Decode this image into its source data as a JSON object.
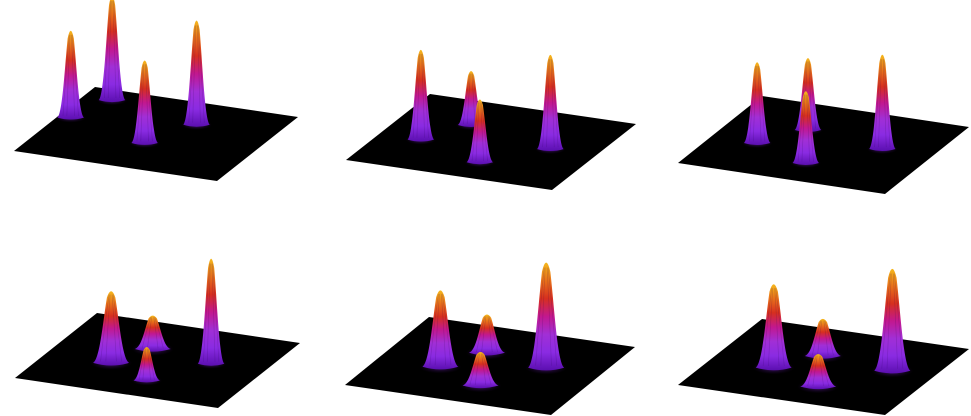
{
  "figure": {
    "layout": {
      "rows": 2,
      "cols": 3
    },
    "colormap": [
      "#5b0fb0",
      "#8a2be2",
      "#a12fd6",
      "#c2188f",
      "#d62f1f",
      "#e8701a",
      "#f5b81c"
    ],
    "plane_color": "#000000",
    "background": "#ffffff",
    "panels": [
      {
        "name": "panel-1",
        "peaks": [
          {
            "u": 0.06,
            "v": 0.55,
            "height": 1.0,
            "width": "narrow"
          },
          {
            "u": 0.14,
            "v": 0.86,
            "height": 1.2,
            "width": "narrow"
          },
          {
            "u": 0.5,
            "v": 0.36,
            "height": 0.95,
            "width": "narrow"
          },
          {
            "u": 0.62,
            "v": 0.7,
            "height": 1.2,
            "width": "narrow"
          }
        ]
      },
      {
        "name": "panel-2",
        "peaks": [
          {
            "u": 0.2,
            "v": 0.4,
            "height": 1.0,
            "width": "narrow"
          },
          {
            "u": 0.33,
            "v": 0.68,
            "height": 0.6,
            "width": "narrow"
          },
          {
            "u": 0.56,
            "v": 0.22,
            "height": 0.7,
            "width": "narrow"
          },
          {
            "u": 0.78,
            "v": 0.52,
            "height": 1.05,
            "width": "narrow"
          }
        ]
      },
      {
        "name": "panel-3",
        "peaks": [
          {
            "u": 0.22,
            "v": 0.4,
            "height": 0.9,
            "width": "narrow"
          },
          {
            "u": 0.36,
            "v": 0.66,
            "height": 0.8,
            "width": "narrow"
          },
          {
            "u": 0.52,
            "v": 0.24,
            "height": 0.8,
            "width": "narrow"
          },
          {
            "u": 0.76,
            "v": 0.56,
            "height": 1.05,
            "width": "narrow"
          }
        ]
      },
      {
        "name": "panel-4",
        "peaks": [
          {
            "u": 0.32,
            "v": 0.38,
            "height": 0.75,
            "width": "medium"
          },
          {
            "u": 0.42,
            "v": 0.64,
            "height": 0.35,
            "width": "medium"
          },
          {
            "u": 0.56,
            "v": 0.22,
            "height": 0.35,
            "width": "narrow"
          },
          {
            "u": 0.74,
            "v": 0.56,
            "height": 1.1,
            "width": "narrow"
          }
        ]
      },
      {
        "name": "panel-5",
        "peaks": [
          {
            "u": 0.3,
            "v": 0.4,
            "height": 0.8,
            "width": "medium"
          },
          {
            "u": 0.42,
            "v": 0.66,
            "height": 0.4,
            "width": "medium"
          },
          {
            "u": 0.56,
            "v": 0.24,
            "height": 0.35,
            "width": "medium"
          },
          {
            "u": 0.74,
            "v": 0.58,
            "height": 1.1,
            "width": "medium"
          }
        ]
      },
      {
        "name": "panel-6",
        "peaks": [
          {
            "u": 0.3,
            "v": 0.4,
            "height": 0.9,
            "width": "medium"
          },
          {
            "u": 0.44,
            "v": 0.64,
            "height": 0.4,
            "width": "medium"
          },
          {
            "u": 0.58,
            "v": 0.24,
            "height": 0.35,
            "width": "medium"
          },
          {
            "u": 0.8,
            "v": 0.58,
            "height": 1.1,
            "width": "medium"
          }
        ]
      }
    ]
  }
}
